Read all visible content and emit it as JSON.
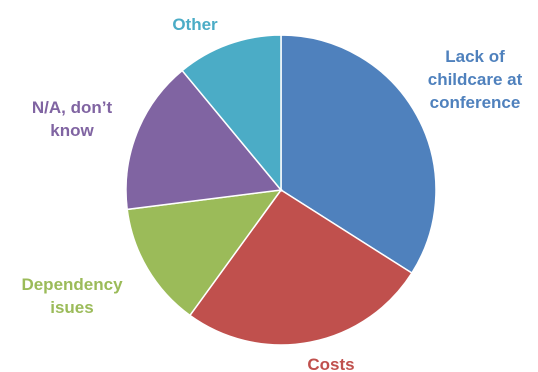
{
  "chart_data": {
    "type": "pie",
    "title": "",
    "slices": [
      {
        "label": "Lack of childcare at conference",
        "label_lines": [
          "Lack of",
          "childcare at",
          "conference"
        ],
        "value": 34,
        "color": "#4F81BD"
      },
      {
        "label": "Costs",
        "label_lines": [
          "Costs"
        ],
        "value": 26,
        "color": "#C0504D"
      },
      {
        "label": "Dependency isues",
        "label_lines": [
          "Dependency",
          "isues"
        ],
        "value": 13,
        "color": "#9BBB59"
      },
      {
        "label": "N/A, don't know",
        "label_lines": [
          "N/A, don’t",
          "know"
        ],
        "value": 16,
        "color": "#8064A2"
      },
      {
        "label": "Other",
        "label_lines": [
          "Other"
        ],
        "value": 11,
        "color": "#4BACC6"
      }
    ],
    "start_angle_deg": 0,
    "direction": "clockwise",
    "legend": "none (labels beside slices)"
  }
}
